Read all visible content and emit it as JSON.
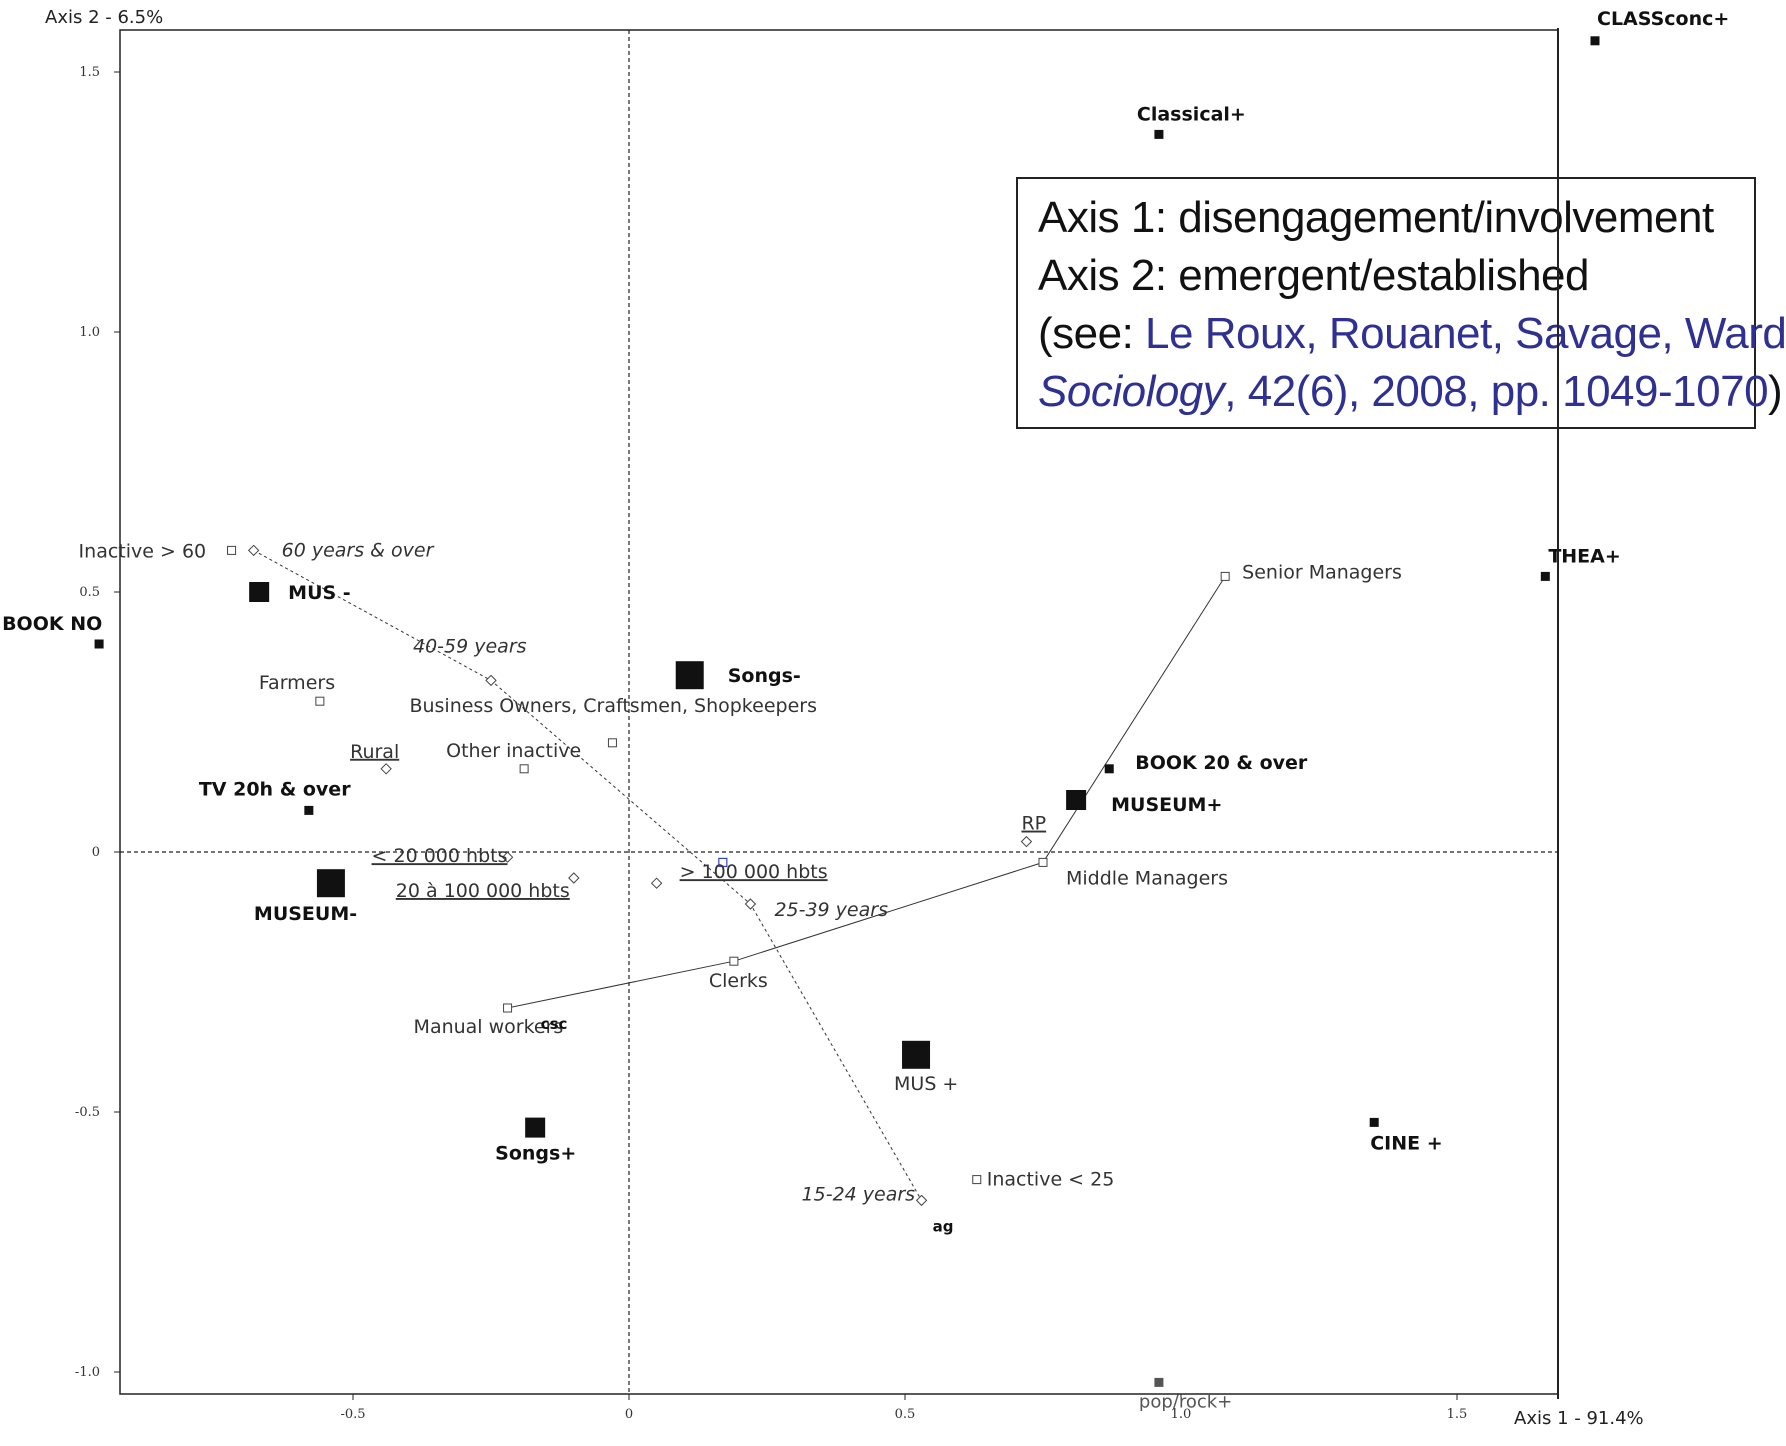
{
  "chart_data": {
    "type": "scatter",
    "title": "",
    "xlabel": "Axis 1 - 91.4%",
    "ylabel": "Axis 2 - 6.5%",
    "xlim": [
      -1.0,
      1.77
    ],
    "ylim": [
      -1.05,
      1.58
    ],
    "x_ticks": [
      {
        "v": -0.5,
        "label": "-0.5"
      },
      {
        "v": 0,
        "label": "0"
      },
      {
        "v": 0.5,
        "label": "0.5"
      },
      {
        "v": 1.0,
        "label": "1.0"
      },
      {
        "v": 1.5,
        "label": "1.5"
      }
    ],
    "y_ticks": [
      {
        "v": 1.5,
        "label": "1.5"
      },
      {
        "v": 1.0,
        "label": "1.0"
      },
      {
        "v": 0.5,
        "label": "0.5"
      },
      {
        "v": 0,
        "label": "0"
      },
      {
        "v": -0.5,
        "label": "-0.5"
      },
      {
        "v": -1.0,
        "label": "-1.0"
      }
    ],
    "reference_lines": {
      "x": 0,
      "y": 0,
      "style": "dotted"
    },
    "series": [
      {
        "name": "",
        "marker": "filled-square",
        "points": [
          {
            "x": 1.75,
            "y": 1.56,
            "label": "CLASSconc+",
            "size": "small",
            "lstyle": "bold"
          },
          {
            "x": 0.96,
            "y": 1.38,
            "label": "Classical+",
            "size": "small",
            "lstyle": "bold"
          },
          {
            "x": 1.66,
            "y": 0.53,
            "label": "THEA+",
            "size": "small",
            "lstyle": "bold"
          },
          {
            "x": -0.67,
            "y": 0.5,
            "label": "MUS -",
            "size": "medium",
            "lstyle": "bold"
          },
          {
            "x": -0.96,
            "y": 0.4,
            "label": "BOOK NO",
            "size": "small",
            "lstyle": "bold"
          },
          {
            "x": 0.11,
            "y": 0.34,
            "label": "Songs-",
            "size": "large",
            "lstyle": "bold"
          },
          {
            "x": 0.87,
            "y": 0.16,
            "label": "BOOK 20 & over",
            "size": "small",
            "lstyle": "bold"
          },
          {
            "x": 0.81,
            "y": 0.1,
            "label": "MUSEUM+",
            "size": "medium",
            "lstyle": "bold"
          },
          {
            "x": -0.58,
            "y": 0.08,
            "label": "TV 20h & over",
            "size": "small",
            "lstyle": "bold"
          },
          {
            "x": -0.54,
            "y": -0.06,
            "label": "MUSEUM-",
            "size": "large",
            "lstyle": "bold"
          },
          {
            "x": 0.52,
            "y": -0.39,
            "label": "MUS +",
            "size": "large",
            "lstyle": "normal"
          },
          {
            "x": -0.17,
            "y": -0.53,
            "label": "Songs+",
            "size": "medium",
            "lstyle": "bold"
          },
          {
            "x": 1.35,
            "y": -0.52,
            "label": "CINE +",
            "size": "small",
            "lstyle": "bold"
          },
          {
            "x": 0.96,
            "y": -1.02,
            "label": "pop/rock+",
            "size": "small",
            "lstyle": "gray"
          }
        ]
      },
      {
        "name": "",
        "marker": "open-square",
        "connected": true,
        "points": [
          {
            "x": -0.22,
            "y": -0.3,
            "label": "Manual workers"
          },
          {
            "x": 0.19,
            "y": -0.21,
            "label": "Clerks"
          },
          {
            "x": 0.75,
            "y": -0.02,
            "label": "Middle Managers"
          },
          {
            "x": 1.08,
            "y": 0.53,
            "label": "Senior Managers"
          }
        ]
      },
      {
        "name": "",
        "marker": "open-square",
        "connected": false,
        "points": [
          {
            "x": -0.72,
            "y": 0.58,
            "label": "Inactive > 60"
          },
          {
            "x": -0.56,
            "y": 0.29,
            "label": "Farmers"
          },
          {
            "x": -0.19,
            "y": 0.16,
            "label": "Other inactive"
          },
          {
            "x": -0.03,
            "y": 0.21,
            "label": "Business Owners, Craftsmen, Shopkeepers"
          },
          {
            "x": 0.63,
            "y": -0.63,
            "label": "Inactive < 25"
          }
        ]
      },
      {
        "name": "",
        "marker": "open-diamond",
        "connected": true,
        "lstyle": "italic",
        "points": [
          {
            "x": -0.68,
            "y": 0.58,
            "label": "60 years & over"
          },
          {
            "x": -0.25,
            "y": 0.33,
            "label": "40-59 years"
          },
          {
            "x": 0.22,
            "y": -0.1,
            "label": "25-39 years"
          },
          {
            "x": 0.53,
            "y": -0.67,
            "label": "15-24 years"
          }
        ]
      },
      {
        "name": "",
        "marker": "open-diamond",
        "connected": false,
        "lstyle": "underline",
        "points": [
          {
            "x": -0.44,
            "y": 0.16,
            "label": "Rural"
          },
          {
            "x": -0.22,
            "y": -0.01,
            "label": "< 20 000 hbts"
          },
          {
            "x": -0.1,
            "y": -0.05,
            "label": "20 à 100 000 hbts"
          },
          {
            "x": 0.05,
            "y": -0.06,
            "label": "> 100 000 hbts"
          },
          {
            "x": 0.72,
            "y": 0.02,
            "label": "RP"
          }
        ]
      }
    ],
    "extra_marks": [
      {
        "x": 0.17,
        "y": -0.02,
        "marker": "open-square-blue"
      }
    ],
    "annotations": [
      {
        "text": "csc",
        "x": -0.16,
        "y": -0.34
      },
      {
        "text": "ag",
        "x": 0.55,
        "y": -0.73
      }
    ]
  },
  "note": {
    "line1": "Axis 1: disengagement/involvement",
    "line2": "Axis 2: emergent/established",
    "line3_prefix": "(see: ",
    "line3_ref": "Le Roux, Rouanet, Savage, Ward",
    "line4_ref_italic": "Sociology",
    "line4_ref": ", 42(6), 2008, pp. 1049-1070",
    "line4_suffix": ")"
  },
  "colors": {
    "marker": "#111111",
    "open_marker": "#444444",
    "reference": "#2e3192",
    "blue_marker": "#3344cc"
  }
}
